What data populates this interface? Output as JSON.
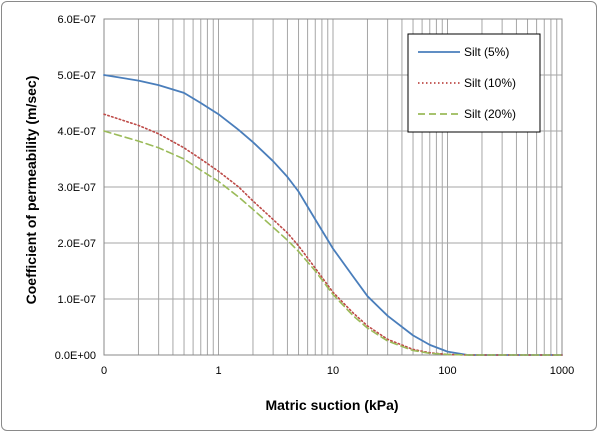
{
  "chart_data": {
    "type": "line",
    "title": "",
    "xlabel": "Matric suction (kPa)",
    "ylabel": "Coefficient of permeability (m/sec)",
    "x_scale": "log",
    "x_axis_note": "first tick labelled 0",
    "x_ticks": [
      "0",
      "1",
      "10",
      "100",
      "1000"
    ],
    "y_ticks": [
      "0.0E+00",
      "1.0E-07",
      "2.0E-07",
      "3.0E-07",
      "4.0E-07",
      "5.0E-07",
      "6.0E-07"
    ],
    "ylim": [
      0,
      6e-07
    ],
    "grid": true,
    "legend_position": "top-right",
    "series": [
      {
        "name": "Silt (5%)",
        "color": "#4a7ebb",
        "dash": "solid",
        "x": [
          0.1,
          0.2,
          0.3,
          0.5,
          0.7,
          1,
          1.5,
          2,
          3,
          4,
          5,
          7,
          10,
          15,
          20,
          30,
          50,
          70,
          100,
          150,
          200,
          300,
          500,
          700,
          1000
        ],
        "y": [
          5e-07,
          4.9e-07,
          4.82e-07,
          4.68e-07,
          4.5e-07,
          4.3e-07,
          4.02e-07,
          3.8e-07,
          3.46e-07,
          3.18e-07,
          2.92e-07,
          2.42e-07,
          1.9e-07,
          1.4e-07,
          1.05e-07,
          7e-08,
          3.5e-08,
          1.8e-08,
          6e-09,
          0,
          0,
          0,
          0,
          0,
          0
        ]
      },
      {
        "name": "Silt (10%)",
        "color": "#be4b48",
        "dash": "dotted",
        "x": [
          0.1,
          0.2,
          0.3,
          0.5,
          0.7,
          1,
          1.5,
          2,
          3,
          4,
          5,
          7,
          10,
          15,
          20,
          30,
          50,
          70,
          100,
          150,
          200,
          300,
          500,
          700,
          1000
        ],
        "y": [
          4.3e-07,
          4.1e-07,
          3.95e-07,
          3.7e-07,
          3.5e-07,
          3.28e-07,
          3e-07,
          2.75e-07,
          2.42e-07,
          2.18e-07,
          1.95e-07,
          1.55e-07,
          1.12e-07,
          7.5e-08,
          5.2e-08,
          2.8e-08,
          1e-08,
          4e-09,
          1e-09,
          0,
          0,
          0,
          0,
          0,
          0
        ]
      },
      {
        "name": "Silt (20%)",
        "color": "#9bbb59",
        "dash": "dashed",
        "x": [
          0.1,
          0.2,
          0.3,
          0.5,
          0.7,
          1,
          1.5,
          2,
          3,
          4,
          5,
          7,
          10,
          15,
          20,
          30,
          50,
          70,
          100,
          150,
          200,
          300,
          500,
          700,
          1000
        ],
        "y": [
          4e-07,
          3.82e-07,
          3.7e-07,
          3.5e-07,
          3.3e-07,
          3.1e-07,
          2.82e-07,
          2.6e-07,
          2.28e-07,
          2.05e-07,
          1.85e-07,
          1.5e-07,
          1.08e-07,
          7e-08,
          4.8e-08,
          2.5e-08,
          8e-09,
          3e-09,
          1e-09,
          0,
          0,
          0,
          0,
          0,
          0
        ]
      }
    ]
  }
}
